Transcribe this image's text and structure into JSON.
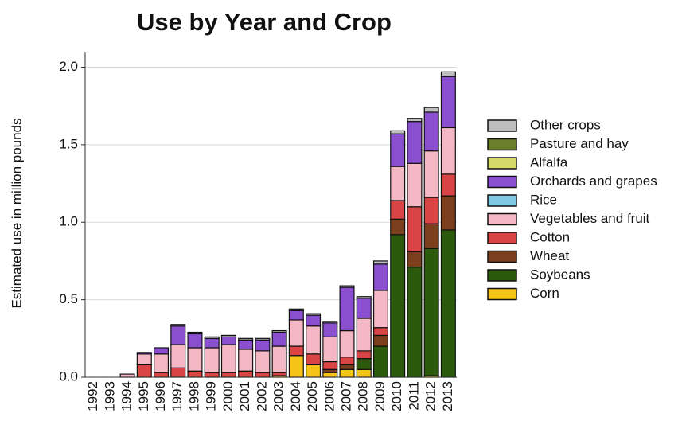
{
  "chart_data": {
    "type": "stacked_bar",
    "title": "Use by Year and Crop",
    "y_label": "Estimated use in million pounds",
    "categories": [
      "1992",
      "1993",
      "1994",
      "1995",
      "1996",
      "1997",
      "1998",
      "1999",
      "2000",
      "2001",
      "2002",
      "2003",
      "2004",
      "2005",
      "2006",
      "2007",
      "2008",
      "2009",
      "2010",
      "2011",
      "2012",
      "2013"
    ],
    "series": [
      {
        "name": "Corn",
        "color": "#f5c518",
        "values": [
          0,
          0,
          0,
          0,
          0,
          0,
          0,
          0,
          0,
          0,
          0,
          0.01,
          0.14,
          0.08,
          0.03,
          0.05,
          0.05,
          0,
          0,
          0,
          0.01,
          0
        ]
      },
      {
        "name": "Soybeans",
        "color": "#2b5a0c",
        "values": [
          0,
          0,
          0,
          0,
          0,
          0,
          0,
          0,
          0,
          0,
          0,
          0,
          0,
          0,
          0,
          0,
          0.07,
          0.2,
          0.92,
          0.71,
          0.82,
          0.95
        ]
      },
      {
        "name": "Wheat",
        "color": "#7b3f1e",
        "values": [
          0,
          0,
          0,
          0,
          0,
          0,
          0,
          0,
          0,
          0,
          0,
          0,
          0,
          0,
          0.02,
          0.03,
          0,
          0.07,
          0.1,
          0.1,
          0.16,
          0.22
        ]
      },
      {
        "name": "Cotton",
        "color": "#d94444",
        "values": [
          0,
          0,
          0,
          0.08,
          0.03,
          0.06,
          0.04,
          0.03,
          0.03,
          0.04,
          0.03,
          0.02,
          0.06,
          0.07,
          0.05,
          0.05,
          0.05,
          0.05,
          0.12,
          0.29,
          0.17,
          0.14
        ]
      },
      {
        "name": "Vegetables and fruit",
        "color": "#f4b8c4",
        "values": [
          0,
          0,
          0.02,
          0.07,
          0.12,
          0.15,
          0.15,
          0.16,
          0.18,
          0.14,
          0.14,
          0.17,
          0.17,
          0.18,
          0.16,
          0.17,
          0.21,
          0.24,
          0.22,
          0.28,
          0.3,
          0.3
        ]
      },
      {
        "name": "Rice",
        "color": "#7ec8e3",
        "values": [
          0,
          0,
          0,
          0,
          0,
          0,
          0,
          0,
          0,
          0,
          0,
          0,
          0,
          0,
          0,
          0,
          0,
          0,
          0,
          0,
          0,
          0
        ]
      },
      {
        "name": "Orchards and grapes",
        "color": "#8a4fcf",
        "values": [
          0,
          0,
          0,
          0.01,
          0.04,
          0.12,
          0.09,
          0.06,
          0.05,
          0.06,
          0.07,
          0.09,
          0.06,
          0.07,
          0.09,
          0.28,
          0.13,
          0.17,
          0.21,
          0.27,
          0.25,
          0.33
        ]
      },
      {
        "name": "Alfalfa",
        "color": "#d4d96a",
        "values": [
          0,
          0,
          0,
          0,
          0,
          0,
          0,
          0,
          0,
          0,
          0,
          0,
          0,
          0,
          0,
          0,
          0,
          0,
          0,
          0,
          0,
          0
        ]
      },
      {
        "name": "Pasture and hay",
        "color": "#6b7f2a",
        "values": [
          0,
          0,
          0,
          0,
          0,
          0,
          0,
          0,
          0,
          0,
          0,
          0,
          0,
          0,
          0,
          0,
          0,
          0,
          0,
          0,
          0,
          0
        ]
      },
      {
        "name": "Other crops",
        "color": "#bdbdbd",
        "values": [
          0,
          0,
          0,
          0,
          0,
          0.01,
          0.01,
          0.01,
          0.01,
          0.01,
          0.01,
          0.01,
          0.01,
          0.01,
          0.01,
          0.01,
          0.01,
          0.02,
          0.02,
          0.02,
          0.03,
          0.03
        ]
      }
    ],
    "ylim": [
      0,
      2.1
    ],
    "yticks": [
      {
        "value": 0,
        "label": "0.0"
      },
      {
        "value": 0.5,
        "label": "0.5"
      },
      {
        "value": 1,
        "label": "1.0"
      },
      {
        "value": 1.5,
        "label": "1.5"
      },
      {
        "value": 2,
        "label": "2.0"
      }
    ],
    "grid": true,
    "legend": "right"
  }
}
